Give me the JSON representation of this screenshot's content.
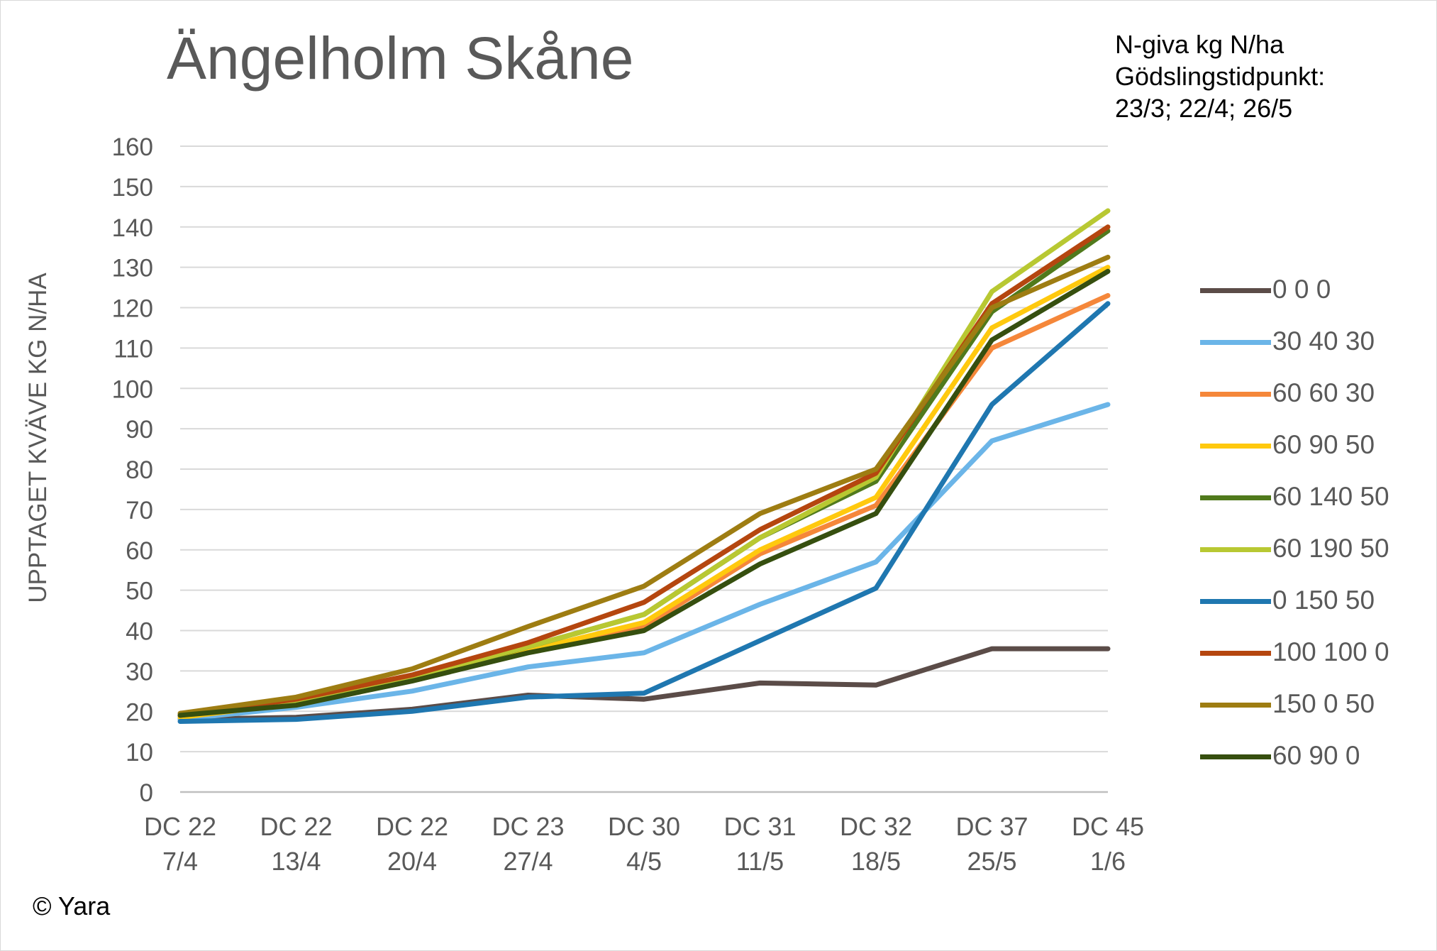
{
  "title": "Ängelholm Skåne",
  "note": [
    "N-giva kg N/ha",
    "Gödslingstidpunkt:",
    "23/3; 22/4; 26/5"
  ],
  "copyright": "© Yara",
  "chart_data": {
    "type": "line",
    "title": "Ängelholm Skåne",
    "xlabel": "",
    "ylabel": "UPPTAGET KVÄVE KG N/HA",
    "categories": [
      [
        "DC 22",
        "7/4"
      ],
      [
        "DC 22",
        "13/4"
      ],
      [
        "DC 22",
        "20/4"
      ],
      [
        "DC 23",
        "27/4"
      ],
      [
        "DC 30",
        "4/5"
      ],
      [
        "DC 31",
        "11/5"
      ],
      [
        "DC 32",
        "18/5"
      ],
      [
        "DC 37",
        "25/5"
      ],
      [
        "DC 45",
        "1/6"
      ]
    ],
    "ylim": [
      0,
      160
    ],
    "yticks": [
      0,
      10,
      20,
      30,
      40,
      50,
      60,
      70,
      80,
      90,
      100,
      110,
      120,
      130,
      140,
      150,
      160
    ],
    "grid": true,
    "legend_position": "right",
    "legend_title": "N-giva kg N/ha",
    "series": [
      {
        "name": "0 0 0",
        "color": "#5b4c48",
        "values": [
          18,
          18.5,
          20.5,
          24,
          23,
          27,
          26.5,
          35.5,
          35.5
        ]
      },
      {
        "name": "30 40 30",
        "color": "#6bb5e8",
        "values": [
          18,
          21,
          25,
          31,
          34.5,
          46.5,
          57,
          87,
          96
        ]
      },
      {
        "name": "60 60 30",
        "color": "#f5873a",
        "values": [
          18.5,
          22,
          28,
          35,
          41,
          59,
          71,
          110,
          123
        ]
      },
      {
        "name": "60 90 50",
        "color": "#ffc90e",
        "values": [
          18.5,
          22,
          28,
          35,
          42,
          60,
          73,
          115,
          130
        ]
      },
      {
        "name": "60 140 50",
        "color": "#507a1c",
        "values": [
          19,
          22.5,
          28,
          36,
          44,
          63,
          77,
          119,
          139
        ]
      },
      {
        "name": "60 190 50",
        "color": "#b8c832",
        "values": [
          19,
          22.5,
          28.5,
          36,
          44,
          63,
          78,
          124,
          144
        ]
      },
      {
        "name": "0 150 50",
        "color": "#1f77b0",
        "values": [
          17.5,
          18,
          20,
          23.5,
          24.5,
          37.5,
          50.5,
          96,
          121
        ]
      },
      {
        "name": "100 100 0",
        "color": "#b5460f",
        "values": [
          19,
          23,
          29,
          37,
          47,
          65,
          79,
          121,
          140
        ]
      },
      {
        "name": "150 0 50",
        "color": "#9e7d12",
        "values": [
          19.5,
          23.5,
          30.5,
          41,
          51,
          69,
          80,
          120,
          132.5
        ]
      },
      {
        "name": "60 90 0",
        "color": "#364f0f",
        "values": [
          19,
          21.5,
          27.5,
          34.5,
          40,
          56.5,
          69,
          112,
          129
        ]
      }
    ]
  }
}
